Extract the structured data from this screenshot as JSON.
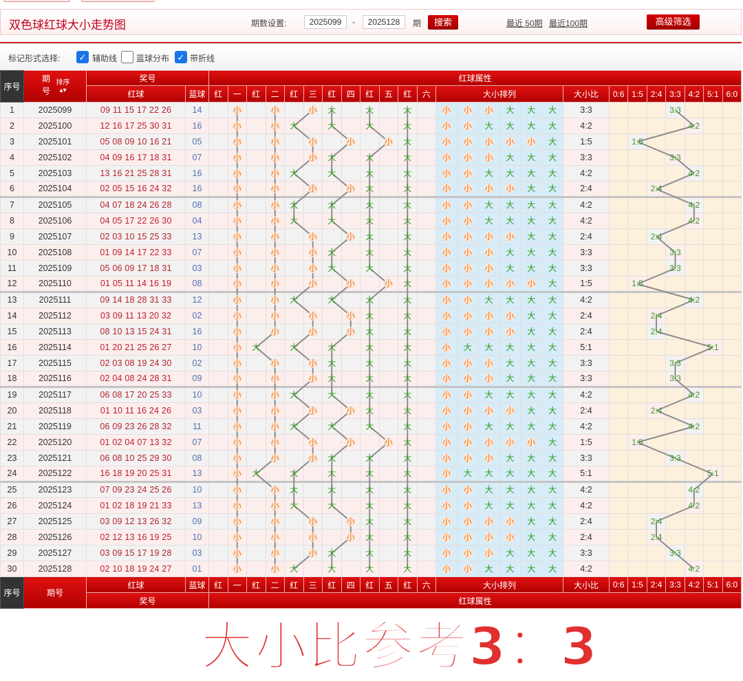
{
  "header": {
    "title": "双色球红球大小走势图",
    "period_label": "期数设置:",
    "start_period": "2025099",
    "dash": "-",
    "end_period": "2025128",
    "unit": "期",
    "search": "搜索",
    "recent50": "最近 50期",
    "recent100": "最近100期",
    "advanced": "高级筛选"
  },
  "options": {
    "label": "标记形式选择:",
    "items": [
      {
        "label": "辅助线",
        "checked": true
      },
      {
        "label": "蓝球分布",
        "checked": false
      },
      {
        "label": "带折线",
        "checked": true
      }
    ]
  },
  "table": {
    "h_seq": "序号",
    "h_period": "期号",
    "h_sort": "排序",
    "h_sort_icon": "sort-arrows-icon",
    "h_prize": "奖号",
    "h_attr": "红球属性",
    "h_red": "红球",
    "h_blue": "蓝球",
    "h_arrange": "大小排列",
    "h_ratio": "大小比",
    "position_cols": [
      "红",
      "一",
      "红",
      "二",
      "红",
      "三",
      "红",
      "四",
      "红",
      "五",
      "红",
      "六"
    ],
    "ratio_cols": [
      "0:6",
      "1:5",
      "2:4",
      "3:3",
      "4:2",
      "5:1",
      "6:0"
    ],
    "big_label": "大",
    "small_label": "小",
    "rows": [
      {
        "seq": "1",
        "period": "2025099",
        "reds": "09 11 15 17 22 26",
        "blue": "14",
        "pattern": "小小小大大大",
        "ratio": "3:3"
      },
      {
        "seq": "2",
        "period": "2025100",
        "reds": "12 16 17 25 30 31",
        "blue": "16",
        "pattern": "小小大大大大",
        "ratio": "4:2"
      },
      {
        "seq": "3",
        "period": "2025101",
        "reds": "05 08 09 10 16 21",
        "blue": "05",
        "pattern": "小小小小小大",
        "ratio": "1:5"
      },
      {
        "seq": "4",
        "period": "2025102",
        "reds": "04 09 16 17 18 31",
        "blue": "07",
        "pattern": "小小小大大大",
        "ratio": "3:3"
      },
      {
        "seq": "5",
        "period": "2025103",
        "reds": "13 16 21 25 28 31",
        "blue": "16",
        "pattern": "小小大大大大",
        "ratio": "4:2"
      },
      {
        "seq": "6",
        "period": "2025104",
        "reds": "02 05 15 16 24 32",
        "blue": "16",
        "pattern": "小小小小大大",
        "ratio": "2:4"
      },
      {
        "seq": "7",
        "period": "2025105",
        "reds": "04 07 18 24 26 28",
        "blue": "08",
        "pattern": "小小大大大大",
        "ratio": "4:2"
      },
      {
        "seq": "8",
        "period": "2025106",
        "reds": "04 05 17 22 26 30",
        "blue": "04",
        "pattern": "小小大大大大",
        "ratio": "4:2"
      },
      {
        "seq": "9",
        "period": "2025107",
        "reds": "02 03 10 15 25 33",
        "blue": "13",
        "pattern": "小小小小大大",
        "ratio": "2:4"
      },
      {
        "seq": "10",
        "period": "2025108",
        "reds": "01 09 14 17 22 33",
        "blue": "07",
        "pattern": "小小小大大大",
        "ratio": "3:3"
      },
      {
        "seq": "11",
        "period": "2025109",
        "reds": "05 06 09 17 18 31",
        "blue": "03",
        "pattern": "小小小大大大",
        "ratio": "3:3"
      },
      {
        "seq": "12",
        "period": "2025110",
        "reds": "01 05 11 14 16 19",
        "blue": "08",
        "pattern": "小小小小小大",
        "ratio": "1:5"
      },
      {
        "seq": "13",
        "period": "2025111",
        "reds": "09 14 18 28 31 33",
        "blue": "12",
        "pattern": "小小大大大大",
        "ratio": "4:2"
      },
      {
        "seq": "14",
        "period": "2025112",
        "reds": "03 09 11 13 20 32",
        "blue": "02",
        "pattern": "小小小小大大",
        "ratio": "2:4"
      },
      {
        "seq": "15",
        "period": "2025113",
        "reds": "08 10 13 15 24 31",
        "blue": "16",
        "pattern": "小小小小大大",
        "ratio": "2:4"
      },
      {
        "seq": "16",
        "period": "2025114",
        "reds": "01 20 21 25 26 27",
        "blue": "10",
        "pattern": "小大大大大大",
        "ratio": "5:1"
      },
      {
        "seq": "17",
        "period": "2025115",
        "reds": "02 03 08 19 24 30",
        "blue": "02",
        "pattern": "小小小大大大",
        "ratio": "3:3"
      },
      {
        "seq": "18",
        "period": "2025116",
        "reds": "02 04 08 24 28 31",
        "blue": "09",
        "pattern": "小小小大大大",
        "ratio": "3:3"
      },
      {
        "seq": "19",
        "period": "2025117",
        "reds": "06 08 17 20 25 33",
        "blue": "10",
        "pattern": "小小大大大大",
        "ratio": "4:2"
      },
      {
        "seq": "20",
        "period": "2025118",
        "reds": "01 10 11 16 24 26",
        "blue": "03",
        "pattern": "小小小小大大",
        "ratio": "2:4"
      },
      {
        "seq": "21",
        "period": "2025119",
        "reds": "06 09 23 26 28 32",
        "blue": "11",
        "pattern": "小小大大大大",
        "ratio": "4:2"
      },
      {
        "seq": "22",
        "period": "2025120",
        "reds": "01 02 04 07 13 32",
        "blue": "07",
        "pattern": "小小小小小大",
        "ratio": "1:5"
      },
      {
        "seq": "23",
        "period": "2025121",
        "reds": "06 08 10 25 29 30",
        "blue": "08",
        "pattern": "小小小大大大",
        "ratio": "3:3"
      },
      {
        "seq": "24",
        "period": "2025122",
        "reds": "16 18 19 20 25 31",
        "blue": "13",
        "pattern": "小大大大大大",
        "ratio": "5:1"
      },
      {
        "seq": "25",
        "period": "2025123",
        "reds": "07 09 23 24 25 26",
        "blue": "10",
        "pattern": "小小大大大大",
        "ratio": "4:2"
      },
      {
        "seq": "26",
        "period": "2025124",
        "reds": "01 02 18 19 21 33",
        "blue": "13",
        "pattern": "小小大大大大",
        "ratio": "4:2"
      },
      {
        "seq": "27",
        "period": "2025125",
        "reds": "03 09 12 13 26 32",
        "blue": "09",
        "pattern": "小小小小大大",
        "ratio": "2:4"
      },
      {
        "seq": "28",
        "period": "2025126",
        "reds": "02 12 13 16 19 25",
        "blue": "10",
        "pattern": "小小小小大大",
        "ratio": "2:4"
      },
      {
        "seq": "29",
        "period": "2025127",
        "reds": "03 09 15 17 19 28",
        "blue": "03",
        "pattern": "小小小大大大",
        "ratio": "3:3"
      },
      {
        "seq": "30",
        "period": "2025128",
        "reds": "02 10 18 19 24 27",
        "blue": "01",
        "pattern": "小小大大大大",
        "ratio": "4:2"
      }
    ]
  },
  "watermark": "大小比参考3：3",
  "colors": {
    "brand_red": "#c00000",
    "big": "#2f9a1a",
    "small": "#e8741e",
    "red_ball": "#b8202c",
    "blue_ball": "#5070b0",
    "arrange_bg": "#d6ecf8",
    "ratio_bg": "#fdf0dc"
  }
}
